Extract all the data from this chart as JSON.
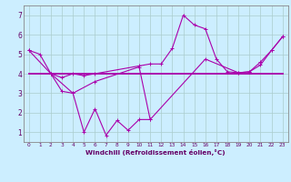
{
  "xlabel": "Windchill (Refroidissement éolien,°C)",
  "background_color": "#cceeff",
  "line_color": "#aa00aa",
  "grid_color": "#aacccc",
  "xlim": [
    -0.5,
    23.5
  ],
  "ylim": [
    0.5,
    7.5
  ],
  "xticks": [
    0,
    1,
    2,
    3,
    4,
    5,
    6,
    7,
    8,
    9,
    10,
    11,
    12,
    13,
    14,
    15,
    16,
    17,
    18,
    19,
    20,
    21,
    22,
    23
  ],
  "yticks": [
    1,
    2,
    3,
    4,
    5,
    6,
    7
  ],
  "series1_x": [
    0,
    1,
    2,
    3,
    4,
    5,
    6,
    7,
    8,
    9,
    10,
    11
  ],
  "series1_y": [
    5.2,
    5.0,
    4.0,
    3.1,
    3.0,
    1.0,
    2.2,
    0.85,
    1.6,
    1.1,
    1.65,
    1.65
  ],
  "series2_x": [
    2,
    3,
    4,
    5,
    6,
    10,
    11,
    12,
    13,
    14,
    15,
    16,
    17,
    18,
    19,
    20,
    21,
    22,
    23
  ],
  "series2_y": [
    4.0,
    3.8,
    4.0,
    3.9,
    4.0,
    4.4,
    4.5,
    4.5,
    5.3,
    7.0,
    6.5,
    6.3,
    4.75,
    4.1,
    4.05,
    4.1,
    4.6,
    5.2,
    5.9
  ],
  "series3_x": [
    0,
    1,
    2,
    3,
    4,
    5,
    6,
    7,
    8,
    9,
    10,
    11,
    12,
    13,
    14,
    15,
    16,
    17,
    18,
    19,
    20,
    21,
    22,
    23
  ],
  "series3_y": [
    4.0,
    4.0,
    4.0,
    4.0,
    4.0,
    4.0,
    4.0,
    4.0,
    4.0,
    4.0,
    4.0,
    4.0,
    4.0,
    4.0,
    4.0,
    4.0,
    4.0,
    4.0,
    4.0,
    4.0,
    4.0,
    4.0,
    4.0,
    4.0
  ],
  "series4_x": [
    0,
    2,
    4,
    6,
    10,
    11,
    16,
    19,
    20,
    21,
    22,
    23
  ],
  "series4_y": [
    5.2,
    4.0,
    3.0,
    3.6,
    4.35,
    1.65,
    4.75,
    4.05,
    4.1,
    4.45,
    5.2,
    5.9
  ]
}
